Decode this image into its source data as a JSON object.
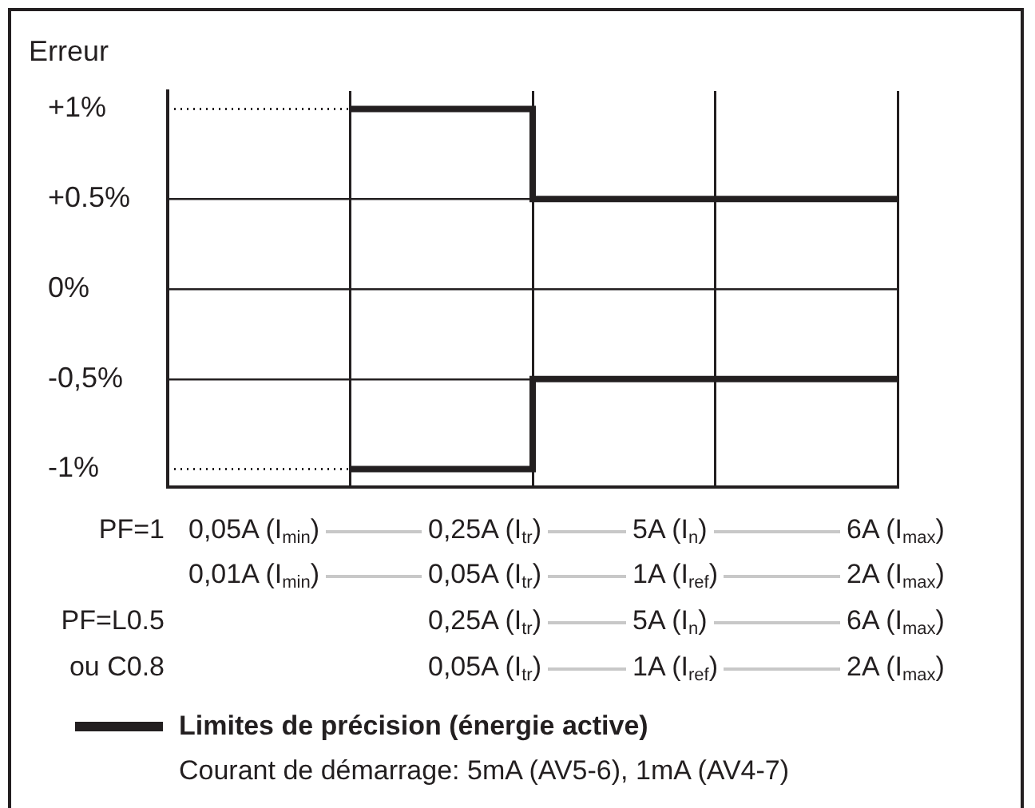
{
  "chart_data": {
    "type": "step",
    "ylabel": "Erreur",
    "categories": [
      null,
      null,
      null,
      null,
      null
    ],
    "series": [
      {
        "name": "Limites de précision (énergie active)",
        "color": "#231f20",
        "values": [
          null,
          1,
          0.5,
          0.5,
          0.5
        ]
      },
      {
        "color": "#231f20",
        "values": [
          null,
          -1,
          -0.5,
          -0.5,
          -0.5
        ]
      }
    ],
    "ylim": [
      -1.1,
      1.1
    ],
    "yticks": [
      {
        "value": 1,
        "label": "+1%"
      },
      {
        "value": 0.5,
        "label": "+0.5%"
      },
      {
        "value": 0,
        "label": "0%"
      },
      {
        "value": -0.5,
        "label": "-0,5%"
      },
      {
        "value": -1,
        "label": "-1%"
      }
    ],
    "ref_lines": [
      {
        "axis": "y",
        "value": 1,
        "label": null,
        "line_style": "dotted"
      },
      {
        "axis": "y",
        "value": -1,
        "label": null,
        "line_style": "dotted"
      }
    ],
    "grid": true,
    "legend": "bottom left",
    "annotations": [
      "PF=1",
      "0,05A (I$_{min}$)",
      "0,25A (I$_{tr}$)",
      "5A (I$_{n}$)",
      "6A (I$_{max}$)",
      "0,01A (I$_{min}$)",
      "0,05A (I$_{tr}$)",
      "1A (I$_{ref}$)",
      "2A (I$_{max}$)",
      "PF=L0.5",
      "0,25A (I$_{tr}$)",
      "5A (I$_{n}$)",
      "6A (I$_{max}$)",
      "ou C0.8",
      "0,05A (I$_{tr}$)",
      "1A (I$_{ref}$)",
      "2A (I$_{max}$)",
      "Courant de démarrage: 5mA (AV5-6), 1mA (AV4-7)"
    ]
  }
}
